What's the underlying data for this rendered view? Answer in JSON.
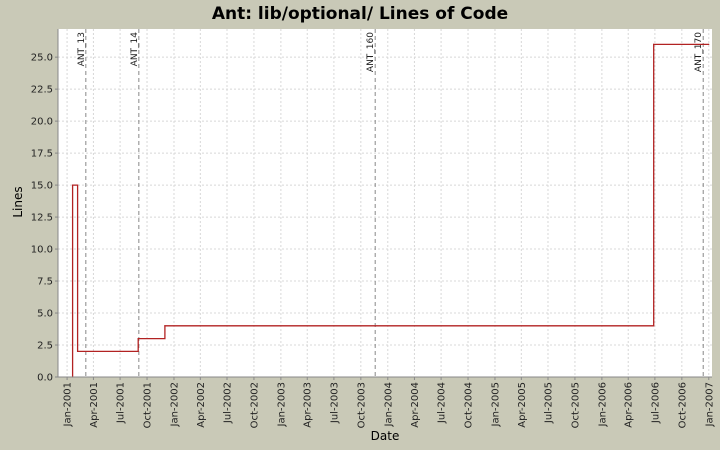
{
  "chart_data": {
    "type": "line",
    "step": true,
    "title": "Ant: lib/optional/ Lines of Code",
    "xlabel": "Date",
    "ylabel": "Lines",
    "xlim": [
      "2000-12-01",
      "2007-01-12"
    ],
    "ylim": [
      0,
      27.2
    ],
    "yticks": [
      0.0,
      2.5,
      5.0,
      7.5,
      10.0,
      12.5,
      15.0,
      17.5,
      20.0,
      22.5,
      25.0
    ],
    "ytick_labels": [
      "0.0",
      "2.5",
      "5.0",
      "7.5",
      "10.0",
      "12.5",
      "15.0",
      "17.5",
      "20.0",
      "22.5",
      "25.0"
    ],
    "xticks": [
      "2001-01-01",
      "2001-04-01",
      "2001-07-01",
      "2001-10-01",
      "2002-01-01",
      "2002-04-01",
      "2002-07-01",
      "2002-10-01",
      "2003-01-01",
      "2003-04-01",
      "2003-07-01",
      "2003-10-01",
      "2004-01-01",
      "2004-04-01",
      "2004-07-01",
      "2004-10-01",
      "2005-01-01",
      "2005-04-01",
      "2005-07-01",
      "2005-10-01",
      "2006-01-01",
      "2006-04-01",
      "2006-07-01",
      "2006-10-01",
      "2007-01-01"
    ],
    "xtick_labels": [
      "Jan-2001",
      "Apr-2001",
      "Jul-2001",
      "Oct-2001",
      "Jan-2002",
      "Apr-2002",
      "Jul-2002",
      "Oct-2002",
      "Jan-2003",
      "Apr-2003",
      "Jul-2003",
      "Oct-2003",
      "Jan-2004",
      "Apr-2004",
      "Jul-2004",
      "Oct-2004",
      "Jan-2005",
      "Apr-2005",
      "Jul-2005",
      "Oct-2005",
      "Jan-2006",
      "Apr-2006",
      "Jul-2006",
      "Oct-2006",
      "Jan-2007"
    ],
    "grid": true,
    "series": [
      {
        "color": "#b22222",
        "x": [
          "2001-01-20",
          "2001-01-20",
          "2001-02-06",
          "2001-09-01",
          "2001-12-01",
          "2006-06-27",
          "2007-01-01"
        ],
        "y": [
          0,
          15,
          2,
          3,
          4,
          26,
          26
        ]
      }
    ],
    "markers": [
      {
        "label": "ANT_13",
        "date": "2001-03-06"
      },
      {
        "label": "ANT_14",
        "date": "2001-09-03"
      },
      {
        "label": "ANT_160",
        "date": "2003-11-19"
      },
      {
        "label": "ANT_170",
        "date": "2006-12-13"
      }
    ]
  },
  "colors": {
    "background": "#c9c9b7",
    "plot_background": "#ffffff",
    "grid": "#d8d8d8",
    "series": "#b22222",
    "marker": "#888888"
  }
}
